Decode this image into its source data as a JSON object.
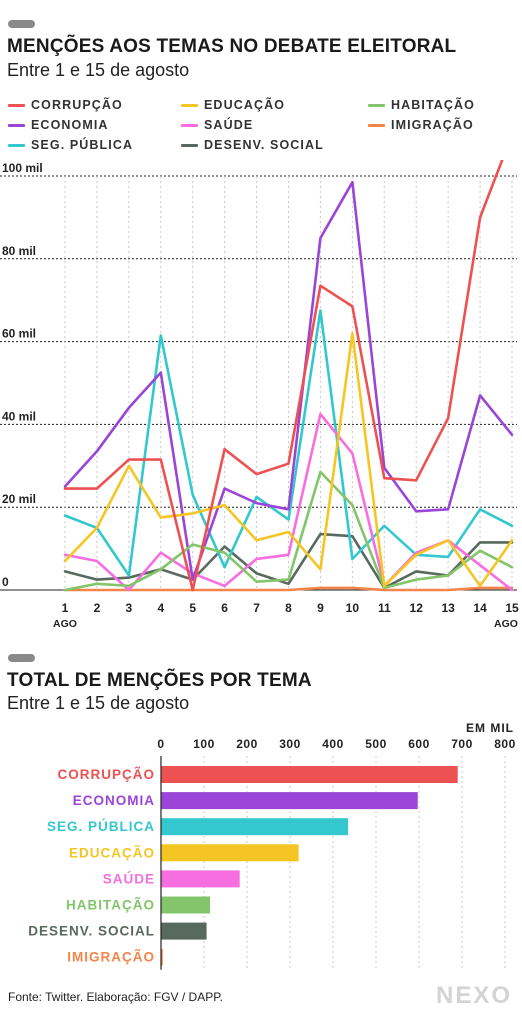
{
  "header": {
    "title": "MENÇÕES AOS TEMAS NO DEBATE ELEITORAL",
    "subtitle": "Entre 1 e 15 de agosto"
  },
  "bar_header": {
    "title": "TOTAL DE MENÇÕES POR TEMA",
    "subtitle": "Entre 1 e 15 de agosto"
  },
  "footer": {
    "source": "Fonte: Twitter. Elaboração: FGV / DAPP.",
    "brand": "NEXO"
  },
  "chart_data": [
    {
      "type": "line",
      "x": [
        1,
        2,
        3,
        4,
        5,
        6,
        7,
        8,
        9,
        10,
        11,
        12,
        13,
        14,
        15
      ],
      "x_tick_labels": [
        "1",
        "2",
        "3",
        "4",
        "5",
        "6",
        "7",
        "8",
        "9",
        "10",
        "11",
        "12",
        "13",
        "14",
        "15"
      ],
      "x_sublabels": {
        "first": "AGO",
        "last": "AGO"
      },
      "ylim": [
        0,
        100000
      ],
      "y_ticks": [
        0,
        20000,
        40000,
        60000,
        80000,
        100000
      ],
      "y_tick_labels": [
        "0",
        "20 mil",
        "40 mil",
        "60 mil",
        "80 mil",
        "100 mil"
      ],
      "grid": true,
      "legend_position": "top",
      "series": [
        {
          "name": "CORRUPÇÃO",
          "color": "#ee5152",
          "values": [
            24500,
            24500,
            31500,
            31500,
            0,
            34000,
            28000,
            30500,
            73500,
            68500,
            27000,
            26500,
            41500,
            90000,
            110000
          ]
        },
        {
          "name": "EDUCAÇÃO",
          "color": "#f5c623",
          "values": [
            7000,
            15000,
            30000,
            17500,
            18500,
            20500,
            12000,
            14000,
            5000,
            62000,
            1000,
            8500,
            12000,
            1000,
            12000
          ]
        },
        {
          "name": "HABITAÇÃO",
          "color": "#83c56a",
          "values": [
            0,
            1500,
            1000,
            5000,
            11000,
            9000,
            2000,
            2500,
            28500,
            20500,
            500,
            2500,
            3500,
            9500,
            5500
          ]
        },
        {
          "name": "ECONOMIA",
          "color": "#9a45d8",
          "values": [
            25000,
            33500,
            44000,
            52500,
            2500,
            24500,
            21000,
            19500,
            85000,
            98500,
            29500,
            19000,
            19500,
            47000,
            37500
          ]
        },
        {
          "name": "SAÚDE",
          "color": "#f76ee0",
          "values": [
            8500,
            7000,
            0,
            9000,
            4000,
            1000,
            7500,
            8500,
            42500,
            33000,
            1000,
            9000,
            12000,
            6000,
            0
          ]
        },
        {
          "name": "IMIGRAÇÃO",
          "color": "#f5844a",
          "values": [
            0,
            0,
            0,
            0,
            0,
            0,
            0,
            0,
            500,
            500,
            0,
            0,
            0,
            500,
            500
          ]
        },
        {
          "name": "SEG. PÚBLICA",
          "color": "#32c8cd",
          "values": [
            18000,
            15000,
            3500,
            61500,
            23000,
            5500,
            22500,
            17000,
            67500,
            7500,
            15500,
            8500,
            8000,
            19500,
            15500
          ]
        },
        {
          "name": "DESENV. SOCIAL",
          "color": "#58695d",
          "values": [
            4500,
            2500,
            3000,
            5000,
            2500,
            10500,
            4000,
            1500,
            13500,
            13000,
            500,
            4500,
            3500,
            11500,
            11500
          ]
        }
      ]
    },
    {
      "type": "bar",
      "orientation": "horizontal",
      "unit_label": "EM MIL",
      "xlim": [
        0,
        800
      ],
      "x_ticks": [
        0,
        100,
        200,
        300,
        400,
        500,
        600,
        700,
        800
      ],
      "x_tick_labels": [
        "0",
        "100",
        "200",
        "300",
        "400",
        "500",
        "600",
        "700",
        "800"
      ],
      "grid": true,
      "categories": [
        "CORRUPÇÃO",
        "ECONOMIA",
        "SEG. PÚBLICA",
        "EDUCAÇÃO",
        "SAÚDE",
        "HABITAÇÃO",
        "DESENV. SOCIAL",
        "IMIGRAÇÃO"
      ],
      "values": [
        690,
        597,
        435,
        320,
        183,
        114,
        106,
        4
      ],
      "colors": [
        "#ee5152",
        "#9a45d8",
        "#32c8cd",
        "#f5c623",
        "#f76ee0",
        "#83c56a",
        "#58695d",
        "#f5844a"
      ]
    }
  ]
}
